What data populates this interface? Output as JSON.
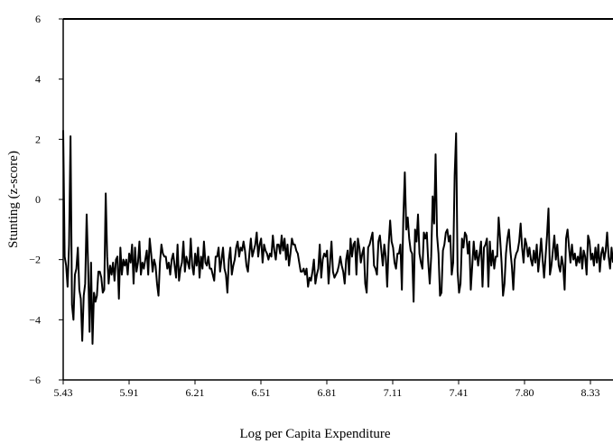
{
  "chart_data": {
    "type": "line",
    "title": "",
    "xlabel": "Log per Capita Expenditure",
    "ylabel": "Stunting (z-score)",
    "xlim": [
      5.43,
      8.68
    ],
    "ylim": [
      -6,
      6
    ],
    "x_ticks": [
      "5.43",
      "5.91",
      "6.21",
      "6.51",
      "6.81",
      "7.11",
      "7.41",
      "7.80",
      "8.33"
    ],
    "y_ticks": [
      -6,
      -4,
      -2,
      0,
      2,
      4,
      6
    ],
    "y_tick_labels": [
      "−6",
      "−4",
      "−2",
      "0",
      "2",
      "4",
      "6"
    ],
    "grid": false,
    "legend": "none",
    "line_color": "#000000",
    "series": [
      {
        "values": [
          2.3,
          -1.9,
          -2.2,
          -2.9,
          -1.5,
          2.1,
          -3.5,
          -4.0,
          -2.5,
          -2.3,
          -1.6,
          -3.0,
          -3.3,
          -4.7,
          -3.2,
          -2.8,
          -0.5,
          -2.2,
          -4.4,
          -2.1,
          -4.8,
          -3.1,
          -3.4,
          -3.2,
          -2.4,
          -2.4,
          -2.6,
          -3.1,
          -3.0,
          0.2,
          -1.9,
          -2.8,
          -2.2,
          -2.5,
          -2.1,
          -2.7,
          -2.0,
          -1.9,
          -3.3,
          -1.6,
          -2.5,
          -2.0,
          -2.2,
          -2.0,
          -2.5,
          -1.8,
          -2.1,
          -1.5,
          -2.8,
          -1.6,
          -2.4,
          -2.1,
          -1.4,
          -2.5,
          -2.1,
          -2.3,
          -2.0,
          -1.7,
          -2.5,
          -1.3,
          -1.8,
          -2.4,
          -2.0,
          -2.2,
          -2.8,
          -3.2,
          -2.1,
          -1.5,
          -1.8,
          -1.9,
          -1.9,
          -2.3,
          -2.1,
          -2.5,
          -2.0,
          -1.8,
          -2.2,
          -2.6,
          -1.5,
          -2.7,
          -2.3,
          -2.1,
          -1.4,
          -2.4,
          -1.9,
          -2.1,
          -2.3,
          -1.3,
          -2.2,
          -2.5,
          -1.8,
          -2.2,
          -1.6,
          -2.6,
          -1.9,
          -2.3,
          -1.4,
          -2.1,
          -2.2,
          -1.9,
          -2.3,
          -2.3,
          -2.5,
          -2.7,
          -1.9,
          -1.9,
          -1.6,
          -2.4,
          -2.0,
          -1.6,
          -2.3,
          -2.5,
          -3.1,
          -2.0,
          -1.6,
          -2.5,
          -2.2,
          -2.0,
          -1.6,
          -1.4,
          -1.9,
          -1.6,
          -1.7,
          -1.4,
          -1.7,
          -2.2,
          -2.4,
          -1.8,
          -1.3,
          -1.9,
          -1.7,
          -1.5,
          -1.1,
          -1.9,
          -1.5,
          -1.3,
          -2.1,
          -1.5,
          -1.7,
          -1.8,
          -2.0,
          -1.8,
          -1.9,
          -1.2,
          -1.7,
          -2.0,
          -1.5,
          -1.5,
          -1.8,
          -1.2,
          -1.7,
          -1.3,
          -2.0,
          -1.5,
          -2.2,
          -1.8,
          -1.3,
          -1.5,
          -1.5,
          -1.7,
          -1.8,
          -2.1,
          -2.4,
          -2.4,
          -2.3,
          -2.5,
          -2.3,
          -2.9,
          -2.6,
          -2.7,
          -2.4,
          -2.0,
          -2.8,
          -2.5,
          -2.3,
          -1.5,
          -2.6,
          -2.0,
          -1.8,
          -1.9,
          -1.7,
          -2.8,
          -2.1,
          -1.4,
          -2.4,
          -2.6,
          -2.5,
          -2.4,
          -2.2,
          -1.9,
          -2.2,
          -2.4,
          -2.8,
          -2.0,
          -1.7,
          -2.5,
          -1.3,
          -1.9,
          -1.5,
          -1.4,
          -2.5,
          -1.3,
          -1.6,
          -2.1,
          -1.8,
          -1.6,
          -2.8,
          -3.1,
          -1.6,
          -1.5,
          -1.3,
          -1.1,
          -2.2,
          -2.3,
          -2.5,
          -1.4,
          -1.2,
          -1.7,
          -2.2,
          -1.5,
          -1.9,
          -2.9,
          -1.5,
          -0.7,
          -1.4,
          -1.6,
          -2.1,
          -2.3,
          -1.8,
          -1.8,
          -1.5,
          -3.0,
          -0.6,
          0.9,
          -1.0,
          -0.6,
          -1.3,
          -1.7,
          -1.8,
          -3.4,
          -1.0,
          -1.4,
          -0.5,
          -1.8,
          -2.1,
          -2.3,
          -1.1,
          -1.3,
          -1.1,
          -2.1,
          -2.8,
          -1.9,
          0.1,
          -0.8,
          1.5,
          -1.2,
          -1.8,
          -3.2,
          -3.1,
          -1.7,
          -1.5,
          -1.1,
          -1.0,
          -1.4,
          -1.2,
          -2.5,
          -2.1,
          0.8,
          2.2,
          -2.4,
          -3.1,
          -2.8,
          -1.3,
          -1.6,
          -1.1,
          -1.2,
          -1.8,
          -1.4,
          -3.0,
          -2.2,
          -1.4,
          -2.0,
          -1.7,
          -2.2,
          -1.8,
          -1.4,
          -2.9,
          -1.6,
          -1.5,
          -1.3,
          -2.9,
          -1.4,
          -2.2,
          -1.7,
          -2.3,
          -1.9,
          -1.9,
          -0.6,
          -1.3,
          -2.1,
          -3.2,
          -2.8,
          -1.8,
          -1.3,
          -1.0,
          -1.7,
          -2.2,
          -3.0,
          -2.0,
          -1.8,
          -1.7,
          -1.4,
          -0.8,
          -1.6,
          -2.1,
          -1.3,
          -1.5,
          -1.9,
          -1.6,
          -2.0,
          -2.2,
          -1.7,
          -2.1,
          -1.5,
          -2.4,
          -1.9,
          -1.3,
          -2.0,
          -2.6,
          -1.9,
          -1.2,
          -0.3,
          -2.5,
          -2.2,
          -1.7,
          -1.2,
          -2.0,
          -1.5,
          -2.2,
          -2.4,
          -1.9,
          -2.2,
          -3.0,
          -1.3,
          -1.0,
          -1.6,
          -2.1,
          -1.5,
          -2.0,
          -1.8,
          -2.2,
          -1.9,
          -2.1,
          -1.6,
          -2.3,
          -1.7,
          -1.9,
          -2.5,
          -1.2,
          -1.4,
          -2.0,
          -1.8,
          -2.2,
          -1.6,
          -2.1,
          -1.5,
          -2.4,
          -1.8,
          -1.6,
          -2.0,
          -1.7,
          -1.1,
          -1.9,
          -2.3,
          -1.6,
          -2.1
        ]
      }
    ]
  }
}
